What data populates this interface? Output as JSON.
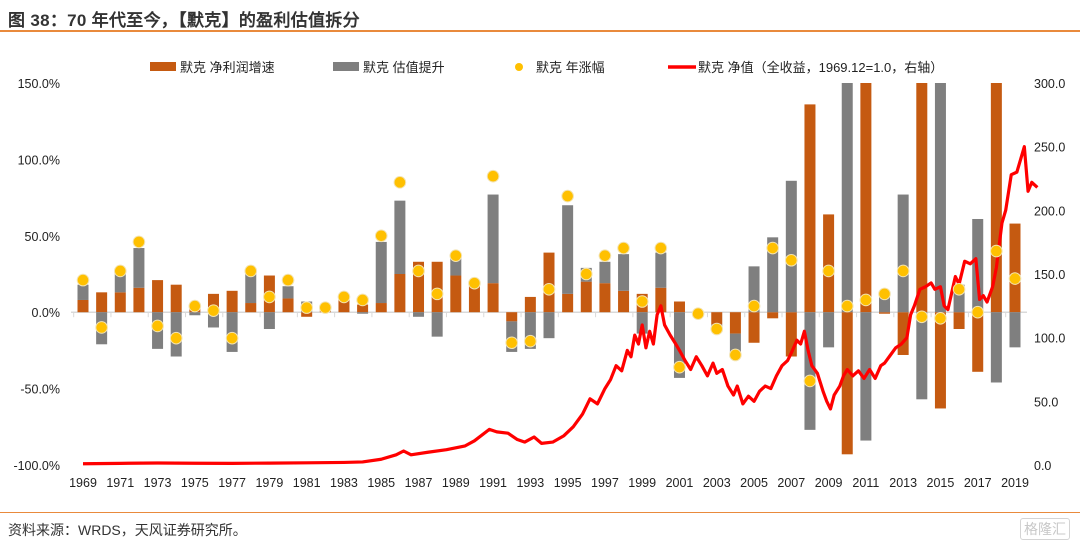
{
  "header": {
    "title": "图 38：70 年代至今，【默克】的盈利估值拆分"
  },
  "footer": {
    "source": "资料来源：WRDS，天风证券研究所。",
    "watermark": "格隆汇"
  },
  "colors": {
    "earnings": "#c55a11",
    "valuation": "#7f7f7f",
    "annual_return": "#ffc000",
    "net_value": "#ff0000",
    "rule": "#e98a3c"
  },
  "chart_data": {
    "type": "bar",
    "title": "70 年代至今，【默克】的盈利估值拆分",
    "xlabel": "",
    "ylabel": "",
    "ylim": [
      -100,
      150
    ],
    "y2lim": [
      0,
      300
    ],
    "yticks": [
      "150.0%",
      "100.0%",
      "50.0%",
      "0.0%",
      "-50.0%",
      "-100.0%"
    ],
    "yticks_values": [
      150,
      100,
      50,
      0,
      -50,
      -100
    ],
    "y2ticks": [
      "300.0",
      "250.0",
      "200.0",
      "150.0",
      "100.0",
      "50.0",
      "0.0"
    ],
    "y2ticks_values": [
      300,
      250,
      200,
      150,
      100,
      50,
      0
    ],
    "legend_position": "top",
    "legend": [
      {
        "name": "默克  净利润增速",
        "kind": "bar"
      },
      {
        "name": "默克  估值提升",
        "kind": "bar"
      },
      {
        "name": "默克   年涨幅",
        "kind": "dot"
      },
      {
        "name": "默克  净值（全收益，1969.12=1.0，右轴）",
        "kind": "line"
      }
    ],
    "categories": [
      1969,
      1970,
      1971,
      1972,
      1973,
      1974,
      1975,
      1976,
      1977,
      1978,
      1979,
      1980,
      1981,
      1982,
      1983,
      1984,
      1985,
      1986,
      1987,
      1988,
      1989,
      1990,
      1991,
      1992,
      1993,
      1994,
      1995,
      1996,
      1997,
      1998,
      1999,
      2000,
      2001,
      2002,
      2003,
      2004,
      2005,
      2006,
      2007,
      2008,
      2009,
      2010,
      2011,
      2012,
      2013,
      2014,
      2015,
      2016,
      2017,
      2018,
      2019
    ],
    "xtick_labels": [
      "1969",
      "1971",
      "1973",
      "1975",
      "1977",
      "1979",
      "1981",
      "1983",
      "1985",
      "1987",
      "1989",
      "1991",
      "1993",
      "1995",
      "1997",
      "1999",
      "2001",
      "2003",
      "2005",
      "2007",
      "2009",
      "2011",
      "2013",
      "2015",
      "2017",
      "2019"
    ],
    "series": [
      {
        "name": "默克  净利润增速",
        "axis": "left",
        "type": "stacked-bar",
        "values": [
          8,
          13,
          13,
          16,
          21,
          18,
          3,
          12,
          14,
          6,
          24,
          9,
          -3,
          1,
          9,
          5,
          6,
          25,
          33,
          33,
          24,
          18,
          19,
          -6,
          10,
          39,
          12,
          20,
          19,
          14,
          12,
          16,
          7,
          0,
          -8,
          -14,
          -20,
          -4,
          -29,
          136,
          64,
          -93,
          150,
          -1,
          -28,
          150,
          -63,
          -11,
          -39,
          150,
          58
        ]
      },
      {
        "name": "默克  估值提升",
        "axis": "left",
        "type": "stacked-bar",
        "values": [
          10,
          -21,
          13,
          26,
          -24,
          -29,
          -2,
          -10,
          -26,
          22,
          -11,
          8,
          7,
          1,
          0,
          -1,
          40,
          48,
          -3,
          -16,
          13,
          0,
          58,
          -20,
          -24,
          -17,
          58,
          9,
          14,
          24,
          -14,
          23,
          -43,
          0,
          -5,
          -14,
          30,
          49,
          86,
          -77,
          -23,
          150,
          -84,
          10,
          77,
          -57,
          150,
          18,
          61,
          -46,
          -23
        ]
      },
      {
        "name": "默克   年涨幅",
        "axis": "left",
        "type": "dot",
        "values": [
          21,
          -10,
          27,
          46,
          -9,
          -17,
          4,
          1,
          -17,
          27,
          10,
          21,
          3,
          3,
          10,
          8,
          50,
          85,
          27,
          12,
          37,
          19,
          89,
          -20,
          -19,
          15,
          76,
          25,
          37,
          42,
          7,
          42,
          -36,
          -1,
          -11,
          -28,
          4,
          42,
          34,
          -45,
          27,
          4,
          8,
          12,
          27,
          -3,
          -4,
          15,
          0,
          40,
          22
        ]
      },
      {
        "name": "默克  净值（全收益，1969.12=1.0，右轴）",
        "axis": "right",
        "type": "line",
        "points": [
          [
            1969.0,
            1.0
          ],
          [
            1971.0,
            1.3
          ],
          [
            1973.0,
            1.6
          ],
          [
            1975.0,
            1.4
          ],
          [
            1977.0,
            1.3
          ],
          [
            1979.0,
            1.5
          ],
          [
            1981.0,
            1.7
          ],
          [
            1983.0,
            2.0
          ],
          [
            1984.0,
            2.4
          ],
          [
            1985.0,
            4.5
          ],
          [
            1985.8,
            8
          ],
          [
            1986.2,
            11
          ],
          [
            1986.6,
            8
          ],
          [
            1987.5,
            10
          ],
          [
            1988.5,
            12
          ],
          [
            1989.5,
            15
          ],
          [
            1990.0,
            19
          ],
          [
            1990.8,
            28
          ],
          [
            1991.2,
            26
          ],
          [
            1991.8,
            25
          ],
          [
            1992.3,
            20
          ],
          [
            1992.7,
            18
          ],
          [
            1993.2,
            22
          ],
          [
            1993.6,
            17
          ],
          [
            1994.2,
            18
          ],
          [
            1994.8,
            23
          ],
          [
            1995.3,
            30
          ],
          [
            1995.8,
            40
          ],
          [
            1996.2,
            52
          ],
          [
            1996.6,
            48
          ],
          [
            1997.0,
            60
          ],
          [
            1997.3,
            67
          ],
          [
            1997.6,
            78
          ],
          [
            1997.9,
            74
          ],
          [
            1998.2,
            90
          ],
          [
            1998.4,
            85
          ],
          [
            1998.6,
            102
          ],
          [
            1998.8,
            95
          ],
          [
            1999.0,
            110
          ],
          [
            1999.2,
            92
          ],
          [
            1999.4,
            105
          ],
          [
            1999.6,
            95
          ],
          [
            1999.8,
            118
          ],
          [
            2000.0,
            125
          ],
          [
            2000.2,
            110
          ],
          [
            2000.5,
            102
          ],
          [
            2000.8,
            95
          ],
          [
            2001.0,
            90
          ],
          [
            2001.3,
            82
          ],
          [
            2001.6,
            75
          ],
          [
            2001.9,
            85
          ],
          [
            2002.2,
            78
          ],
          [
            2002.5,
            70
          ],
          [
            2002.8,
            80
          ],
          [
            2003.0,
            72
          ],
          [
            2003.3,
            75
          ],
          [
            2003.6,
            62
          ],
          [
            2003.9,
            55
          ],
          [
            2004.1,
            62
          ],
          [
            2004.4,
            48
          ],
          [
            2004.7,
            54
          ],
          [
            2005.0,
            50
          ],
          [
            2005.3,
            58
          ],
          [
            2005.6,
            62
          ],
          [
            2005.9,
            60
          ],
          [
            2006.2,
            70
          ],
          [
            2006.5,
            78
          ],
          [
            2006.8,
            82
          ],
          [
            2007.0,
            88
          ],
          [
            2007.3,
            98
          ],
          [
            2007.5,
            95
          ],
          [
            2007.7,
            105
          ],
          [
            2007.9,
            90
          ],
          [
            2008.1,
            78
          ],
          [
            2008.4,
            72
          ],
          [
            2008.7,
            58
          ],
          [
            2008.9,
            50
          ],
          [
            2009.1,
            44
          ],
          [
            2009.3,
            55
          ],
          [
            2009.6,
            62
          ],
          [
            2009.8,
            70
          ],
          [
            2010.0,
            75
          ],
          [
            2010.3,
            70
          ],
          [
            2010.6,
            74
          ],
          [
            2010.9,
            68
          ],
          [
            2011.2,
            75
          ],
          [
            2011.5,
            68
          ],
          [
            2011.8,
            78
          ],
          [
            2012.0,
            80
          ],
          [
            2012.3,
            86
          ],
          [
            2012.6,
            92
          ],
          [
            2012.9,
            95
          ],
          [
            2013.2,
            100
          ],
          [
            2013.4,
            118
          ],
          [
            2013.6,
            125
          ],
          [
            2013.9,
            138
          ],
          [
            2014.2,
            140
          ],
          [
            2014.5,
            143
          ],
          [
            2014.7,
            138
          ],
          [
            2015.0,
            140
          ],
          [
            2015.2,
            125
          ],
          [
            2015.4,
            122
          ],
          [
            2015.6,
            135
          ],
          [
            2015.8,
            148
          ],
          [
            2016.0,
            142
          ],
          [
            2016.3,
            160
          ],
          [
            2016.6,
            158
          ],
          [
            2016.9,
            162
          ],
          [
            2017.1,
            130
          ],
          [
            2017.3,
            133
          ],
          [
            2017.5,
            128
          ],
          [
            2017.8,
            140
          ],
          [
            2018.0,
            155
          ],
          [
            2018.3,
            190
          ],
          [
            2018.5,
            200
          ],
          [
            2018.8,
            228
          ],
          [
            2019.1,
            230
          ],
          [
            2019.3,
            240
          ],
          [
            2019.5,
            250
          ],
          [
            2019.7,
            215
          ],
          [
            2019.9,
            222
          ],
          [
            2020.2,
            218
          ]
        ]
      }
    ]
  }
}
